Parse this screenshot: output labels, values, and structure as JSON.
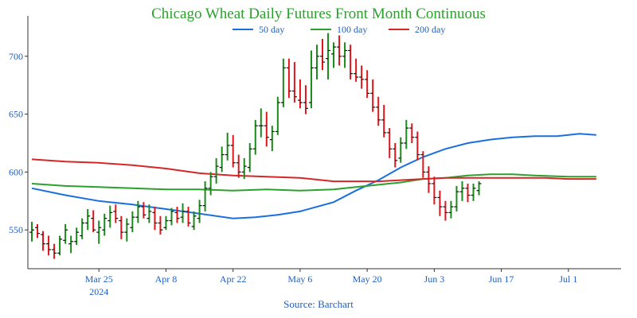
{
  "chart_data": {
    "type": "line",
    "title": "Chicago Wheat Daily Futures Front Month Continuous",
    "source": "Source: Barchart",
    "xlabel": "",
    "ylabel": "",
    "ylim": [
      522,
      728
    ],
    "xlim": [
      0,
      104
    ],
    "y_ticks": [
      550,
      600,
      650,
      700
    ],
    "x_ticks": [
      {
        "x": 12,
        "label": "Mar 25",
        "sub": "2024"
      },
      {
        "x": 24,
        "label": "Apr 8",
        "sub": ""
      },
      {
        "x": 36,
        "label": "Apr 22",
        "sub": ""
      },
      {
        "x": 48,
        "label": "May 6",
        "sub": ""
      },
      {
        "x": 60,
        "label": "May 20",
        "sub": ""
      },
      {
        "x": 72,
        "label": "Jun 3",
        "sub": ""
      },
      {
        "x": 84,
        "label": "Jun 17",
        "sub": ""
      },
      {
        "x": 96,
        "label": "Jul 1",
        "sub": ""
      }
    ],
    "grid": false,
    "legend_position": "top-center",
    "series": [
      {
        "name": "50 day",
        "color": "#1a6fdf",
        "points": [
          [
            0,
            586
          ],
          [
            6,
            580
          ],
          [
            12,
            575
          ],
          [
            18,
            572
          ],
          [
            24,
            568
          ],
          [
            30,
            564
          ],
          [
            36,
            560
          ],
          [
            40,
            561
          ],
          [
            44,
            563
          ],
          [
            48,
            566
          ],
          [
            54,
            574
          ],
          [
            58,
            584
          ],
          [
            62,
            593
          ],
          [
            66,
            604
          ],
          [
            70,
            613
          ],
          [
            74,
            620
          ],
          [
            78,
            625
          ],
          [
            82,
            628
          ],
          [
            86,
            630
          ],
          [
            90,
            631
          ],
          [
            94,
            631
          ],
          [
            98,
            633
          ],
          [
            101,
            632
          ]
        ]
      },
      {
        "name": "100 day",
        "color": "#2ca02c",
        "points": [
          [
            0,
            590
          ],
          [
            6,
            588
          ],
          [
            12,
            587
          ],
          [
            18,
            586
          ],
          [
            24,
            585
          ],
          [
            30,
            585
          ],
          [
            36,
            584
          ],
          [
            42,
            585
          ],
          [
            48,
            584
          ],
          [
            54,
            585
          ],
          [
            58,
            587
          ],
          [
            62,
            589
          ],
          [
            66,
            591
          ],
          [
            70,
            594
          ],
          [
            74,
            595
          ],
          [
            78,
            597
          ],
          [
            82,
            598
          ],
          [
            86,
            598
          ],
          [
            90,
            597
          ],
          [
            96,
            596
          ],
          [
            101,
            596
          ]
        ]
      },
      {
        "name": "200 day",
        "color": "#d62728",
        "points": [
          [
            0,
            611
          ],
          [
            6,
            609
          ],
          [
            12,
            608
          ],
          [
            18,
            606
          ],
          [
            24,
            603
          ],
          [
            30,
            599
          ],
          [
            36,
            597
          ],
          [
            42,
            596
          ],
          [
            48,
            595
          ],
          [
            54,
            592
          ],
          [
            58,
            592
          ],
          [
            62,
            592
          ],
          [
            66,
            593
          ],
          [
            70,
            594
          ],
          [
            74,
            595
          ],
          [
            80,
            595
          ],
          [
            86,
            595
          ],
          [
            92,
            595
          ],
          [
            96,
            594
          ],
          [
            101,
            594
          ]
        ]
      }
    ],
    "bars": [
      {
        "o": 548,
        "h": 557,
        "l": 540,
        "c": 550
      },
      {
        "o": 552,
        "h": 555,
        "l": 543,
        "c": 547
      },
      {
        "o": 546,
        "h": 549,
        "l": 532,
        "c": 538
      },
      {
        "o": 538,
        "h": 545,
        "l": 528,
        "c": 533
      },
      {
        "o": 533,
        "h": 538,
        "l": 525,
        "c": 530
      },
      {
        "o": 530,
        "h": 545,
        "l": 528,
        "c": 542
      },
      {
        "o": 541,
        "h": 555,
        "l": 538,
        "c": 550
      },
      {
        "o": 538,
        "h": 545,
        "l": 530,
        "c": 540
      },
      {
        "o": 540,
        "h": 552,
        "l": 537,
        "c": 548
      },
      {
        "o": 545,
        "h": 560,
        "l": 542,
        "c": 556
      },
      {
        "o": 556,
        "h": 568,
        "l": 550,
        "c": 562
      },
      {
        "o": 560,
        "h": 567,
        "l": 548,
        "c": 550
      },
      {
        "o": 548,
        "h": 558,
        "l": 538,
        "c": 552
      },
      {
        "o": 550,
        "h": 564,
        "l": 545,
        "c": 560
      },
      {
        "o": 558,
        "h": 571,
        "l": 552,
        "c": 565
      },
      {
        "o": 566,
        "h": 572,
        "l": 556,
        "c": 560
      },
      {
        "o": 558,
        "h": 562,
        "l": 542,
        "c": 548
      },
      {
        "o": 548,
        "h": 560,
        "l": 540,
        "c": 555
      },
      {
        "o": 552,
        "h": 566,
        "l": 548,
        "c": 561
      },
      {
        "o": 561,
        "h": 575,
        "l": 556,
        "c": 570
      },
      {
        "o": 570,
        "h": 574,
        "l": 560,
        "c": 563
      },
      {
        "o": 560,
        "h": 572,
        "l": 556,
        "c": 566
      },
      {
        "o": 565,
        "h": 570,
        "l": 550,
        "c": 556
      },
      {
        "o": 556,
        "h": 562,
        "l": 546,
        "c": 550
      },
      {
        "o": 552,
        "h": 562,
        "l": 550,
        "c": 558
      },
      {
        "o": 558,
        "h": 569,
        "l": 554,
        "c": 566
      },
      {
        "o": 565,
        "h": 570,
        "l": 556,
        "c": 560
      },
      {
        "o": 561,
        "h": 573,
        "l": 556,
        "c": 566
      },
      {
        "o": 566,
        "h": 570,
        "l": 553,
        "c": 556
      },
      {
        "o": 553,
        "h": 566,
        "l": 550,
        "c": 562
      },
      {
        "o": 560,
        "h": 576,
        "l": 556,
        "c": 571
      },
      {
        "o": 571,
        "h": 592,
        "l": 566,
        "c": 586
      },
      {
        "o": 586,
        "h": 600,
        "l": 580,
        "c": 596
      },
      {
        "o": 596,
        "h": 612,
        "l": 590,
        "c": 605
      },
      {
        "o": 604,
        "h": 622,
        "l": 600,
        "c": 615
      },
      {
        "o": 615,
        "h": 634,
        "l": 610,
        "c": 623
      },
      {
        "o": 623,
        "h": 632,
        "l": 604,
        "c": 608
      },
      {
        "o": 608,
        "h": 615,
        "l": 595,
        "c": 600
      },
      {
        "o": 600,
        "h": 612,
        "l": 594,
        "c": 605
      },
      {
        "o": 604,
        "h": 625,
        "l": 600,
        "c": 620
      },
      {
        "o": 620,
        "h": 645,
        "l": 615,
        "c": 640
      },
      {
        "o": 640,
        "h": 655,
        "l": 630,
        "c": 640
      },
      {
        "o": 640,
        "h": 652,
        "l": 622,
        "c": 630
      },
      {
        "o": 628,
        "h": 640,
        "l": 618,
        "c": 635
      },
      {
        "o": 635,
        "h": 665,
        "l": 632,
        "c": 660
      },
      {
        "o": 660,
        "h": 698,
        "l": 656,
        "c": 690
      },
      {
        "o": 690,
        "h": 698,
        "l": 664,
        "c": 670
      },
      {
        "o": 670,
        "h": 695,
        "l": 660,
        "c": 665
      },
      {
        "o": 662,
        "h": 680,
        "l": 655,
        "c": 660
      },
      {
        "o": 660,
        "h": 675,
        "l": 650,
        "c": 655
      },
      {
        "o": 660,
        "h": 705,
        "l": 655,
        "c": 690
      },
      {
        "o": 690,
        "h": 710,
        "l": 680,
        "c": 700
      },
      {
        "o": 700,
        "h": 715,
        "l": 688,
        "c": 695
      },
      {
        "o": 698,
        "h": 720,
        "l": 680,
        "c": 705
      },
      {
        "o": 702,
        "h": 712,
        "l": 690,
        "c": 708
      },
      {
        "o": 708,
        "h": 718,
        "l": 692,
        "c": 700
      },
      {
        "o": 700,
        "h": 712,
        "l": 690,
        "c": 705
      },
      {
        "o": 705,
        "h": 710,
        "l": 680,
        "c": 685
      },
      {
        "o": 685,
        "h": 698,
        "l": 678,
        "c": 682
      },
      {
        "o": 682,
        "h": 692,
        "l": 672,
        "c": 680
      },
      {
        "o": 680,
        "h": 688,
        "l": 664,
        "c": 668
      },
      {
        "o": 668,
        "h": 680,
        "l": 652,
        "c": 656
      },
      {
        "o": 656,
        "h": 665,
        "l": 640,
        "c": 645
      },
      {
        "o": 645,
        "h": 658,
        "l": 630,
        "c": 634
      },
      {
        "o": 634,
        "h": 638,
        "l": 612,
        "c": 620
      },
      {
        "o": 620,
        "h": 625,
        "l": 604,
        "c": 610
      },
      {
        "o": 612,
        "h": 630,
        "l": 608,
        "c": 625
      },
      {
        "o": 625,
        "h": 645,
        "l": 620,
        "c": 638
      },
      {
        "o": 638,
        "h": 642,
        "l": 625,
        "c": 630
      },
      {
        "o": 630,
        "h": 635,
        "l": 610,
        "c": 615
      },
      {
        "o": 615,
        "h": 618,
        "l": 595,
        "c": 600
      },
      {
        "o": 600,
        "h": 605,
        "l": 582,
        "c": 590
      },
      {
        "o": 590,
        "h": 596,
        "l": 572,
        "c": 578
      },
      {
        "o": 578,
        "h": 584,
        "l": 562,
        "c": 570
      },
      {
        "o": 570,
        "h": 575,
        "l": 558,
        "c": 565
      },
      {
        "o": 565,
        "h": 575,
        "l": 560,
        "c": 570
      },
      {
        "o": 570,
        "h": 588,
        "l": 566,
        "c": 583
      },
      {
        "o": 583,
        "h": 592,
        "l": 575,
        "c": 586
      },
      {
        "o": 586,
        "h": 590,
        "l": 574,
        "c": 580
      },
      {
        "o": 580,
        "h": 590,
        "l": 575,
        "c": 586
      },
      {
        "o": 584,
        "h": 592,
        "l": 580,
        "c": 590
      }
    ]
  }
}
